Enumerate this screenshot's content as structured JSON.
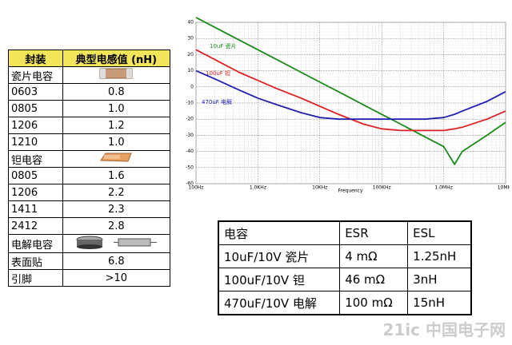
{
  "chart_data": {
    "type": "line",
    "x_label": "Frequency",
    "xscale": "log",
    "grid": true,
    "x": [
      100,
      200,
      500,
      1000,
      2000,
      5000,
      10000,
      20000,
      50000,
      100000,
      200000,
      500000,
      1000000,
      1500000,
      2000000,
      5000000,
      10000000
    ],
    "series": [
      {
        "name": "10uF 瓷片",
        "color": "#1a8a1a",
        "values": [
          43,
          37,
          29,
          23,
          17,
          9,
          3,
          -3,
          -11,
          -17,
          -23,
          -31,
          -37,
          -48,
          -40,
          -30,
          -22
        ]
      },
      {
        "name": "100uF 钽",
        "color": "#e02020",
        "values": [
          23,
          17,
          9,
          4,
          -1,
          -7,
          -12,
          -17,
          -23,
          -26,
          -27,
          -27,
          -27,
          -26,
          -25,
          -20,
          -15
        ]
      },
      {
        "name": "470uF 电解",
        "color": "#2020b0",
        "values": [
          10,
          5,
          -2,
          -7,
          -11,
          -16,
          -19,
          -20,
          -20,
          -20,
          -20,
          -20,
          -19,
          -17,
          -15,
          -9,
          -3
        ]
      }
    ],
    "xlim": [
      100,
      10000000
    ],
    "xticks": [
      {
        "value": 100,
        "label": "100Hz"
      },
      {
        "value": 1000,
        "label": "1.0KHz"
      },
      {
        "value": 10000,
        "label": "10KHz"
      },
      {
        "value": 100000,
        "label": "100KHz"
      },
      {
        "value": 1000000,
        "label": "1.0MHz"
      },
      {
        "value": 10000000,
        "label": "10MHz"
      }
    ],
    "ylim": [
      -60,
      40
    ],
    "yticks": [
      -60,
      -50,
      -40,
      -30,
      -20,
      -10,
      0,
      10,
      20,
      30,
      40
    ]
  },
  "left_table": {
    "header": [
      "封装",
      "典型电感值 (nH)"
    ],
    "rows": [
      [
        "瓷片电容"
      ],
      [
        "0603",
        "0.8"
      ],
      [
        "0805",
        "1.0"
      ],
      [
        "1206",
        "1.2"
      ],
      [
        "1210",
        "1.0"
      ],
      [
        "钽电容"
      ],
      [
        "0805",
        "1.6"
      ],
      [
        "1206",
        "2.2"
      ],
      [
        "1411",
        "2.3"
      ],
      [
        "2412",
        "2.8"
      ],
      [
        "电解电容"
      ],
      [
        "表面贴",
        "6.8"
      ],
      [
        "引脚",
        ">10"
      ]
    ]
  },
  "right_table": {
    "header": [
      "电容",
      "ESR",
      "ESL"
    ],
    "rows": [
      [
        "10uF/10V 瓷片",
        "4 mΩ",
        "1.25nH"
      ],
      [
        "100uF/10V 钽",
        "46 mΩ",
        "3nH"
      ],
      [
        "470uF/10V 电解",
        "100 mΩ",
        "15nH"
      ]
    ]
  },
  "watermark": "21ic 中国电子网"
}
